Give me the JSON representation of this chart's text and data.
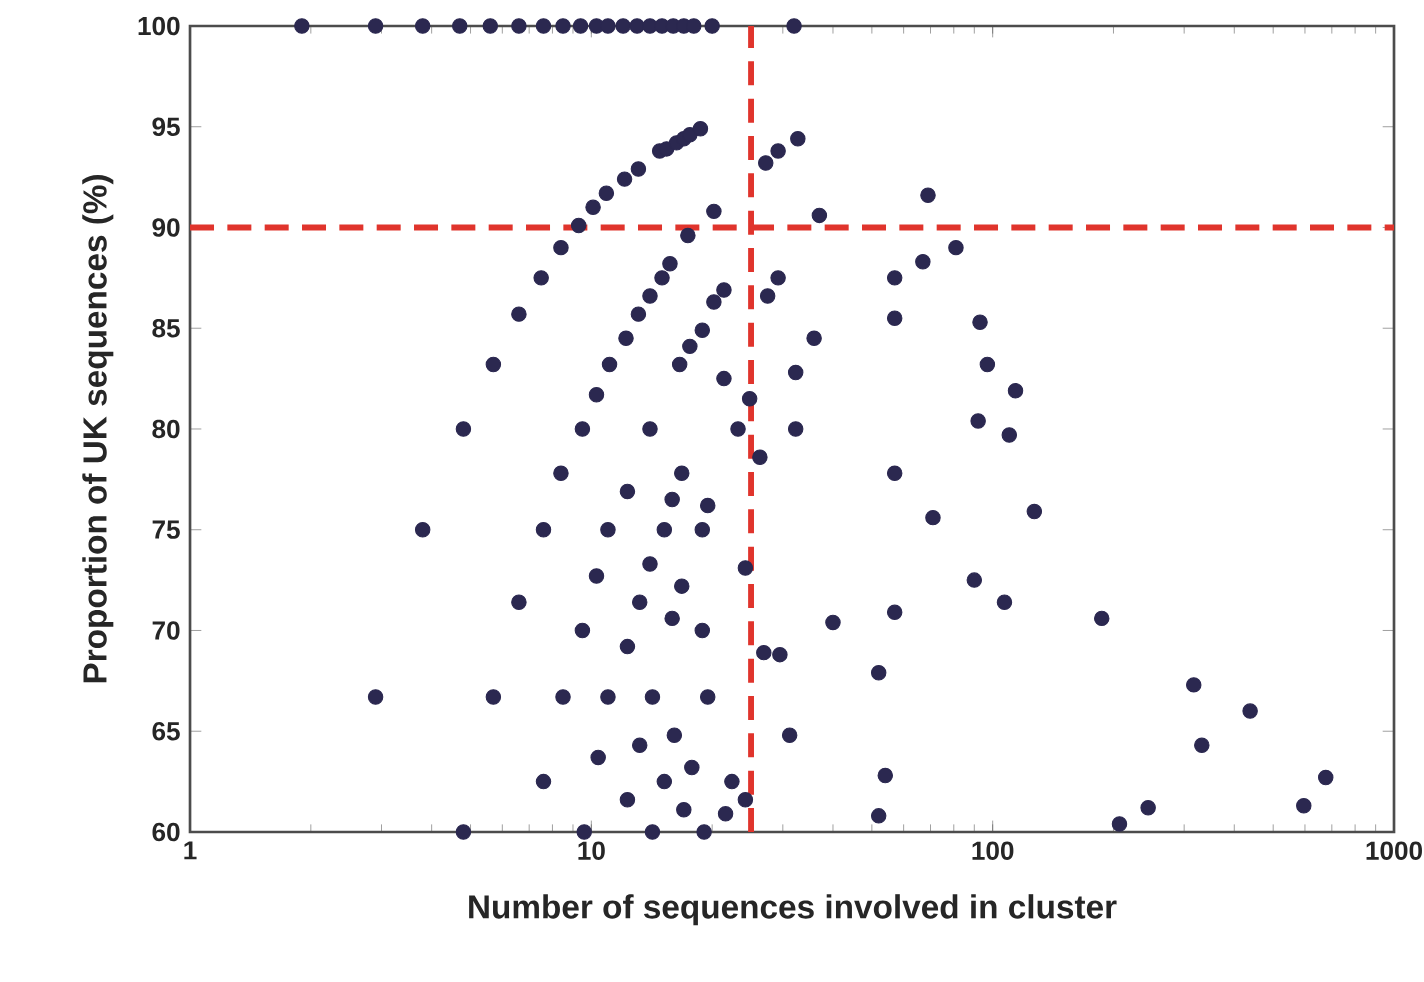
{
  "chart_data": {
    "type": "scatter",
    "xlabel": "Number of sequences involved in cluster",
    "ylabel": "Proportion of UK sequences (%)",
    "log": "x",
    "xlim": [
      1,
      1000
    ],
    "ylim": [
      60,
      100
    ],
    "xticks": [
      1,
      10,
      100,
      1000
    ],
    "yticks": [
      60,
      65,
      70,
      75,
      80,
      85,
      90,
      95,
      100
    ],
    "marker": "circle",
    "series": [
      {
        "color": "#2b2850",
        "x": [
          1.9,
          2.9,
          3.8,
          4.7,
          5.6,
          6.6,
          7.6,
          8.5,
          9.4,
          10.3,
          11,
          12,
          13,
          14,
          15,
          16,
          17,
          18,
          20,
          32,
          5.7,
          6.6,
          7.5,
          8.4,
          9.3,
          10.1,
          10.9,
          12.1,
          13.1,
          14.8,
          15.4,
          16.3,
          17.0,
          17.6,
          18.7,
          20.2,
          17.4,
          15.7,
          15.0,
          14.0,
          13.1,
          12.2,
          11.1,
          10.3,
          21.4,
          20.2,
          18.9,
          17.6,
          16.6,
          21.4,
          27.2,
          29.2,
          32.7,
          69,
          37,
          29.2,
          27.5,
          35.9,
          32.3,
          24.8,
          4.8,
          9.5,
          14,
          23.2,
          32.3,
          81,
          67,
          57,
          57,
          93,
          97,
          92,
          114,
          110,
          127,
          187,
          317,
          438,
          332,
          676,
          596,
          244,
          207,
          107,
          90,
          71,
          57,
          57,
          40,
          52,
          54,
          52,
          8.4,
          3.8,
          7.6,
          11,
          10.3,
          6.6,
          9.5,
          2.9,
          5.7,
          8.5,
          11,
          10.4,
          7.6,
          4.8,
          9.6,
          26.3,
          16.8,
          12.3,
          15.9,
          19.5,
          15.2,
          18.9,
          14,
          24.2,
          16.8,
          13.2,
          15.9,
          18.9,
          12.3,
          26.9,
          29.5,
          14.2,
          19.5,
          31.2,
          16.1,
          13.2,
          17.8,
          15.2,
          22.4,
          12.3,
          17,
          21.6,
          24.2,
          14.2,
          19.1
        ],
        "values": [
          100,
          100,
          100,
          100,
          100,
          100,
          100,
          100,
          100,
          100,
          100,
          100,
          100,
          100,
          100,
          100,
          100,
          100,
          100,
          100,
          83.2,
          85.7,
          87.5,
          89.0,
          90.1,
          91.0,
          91.7,
          92.4,
          92.9,
          93.8,
          93.9,
          94.2,
          94.4,
          94.6,
          94.9,
          90.8,
          89.6,
          88.2,
          87.5,
          86.6,
          85.7,
          84.5,
          83.2,
          81.7,
          86.9,
          86.3,
          84.9,
          84.1,
          83.2,
          82.5,
          93.2,
          93.8,
          94.4,
          91.6,
          90.6,
          87.5,
          86.6,
          84.5,
          82.8,
          81.5,
          80,
          80,
          80,
          80,
          80,
          89.0,
          88.3,
          87.5,
          85.5,
          85.3,
          83.2,
          80.4,
          81.9,
          79.7,
          75.9,
          70.6,
          67.3,
          66.0,
          64.3,
          62.7,
          61.3,
          61.2,
          60.4,
          71.4,
          72.5,
          75.6,
          77.8,
          70.9,
          70.4,
          67.9,
          62.8,
          60.8,
          77.8,
          75,
          75,
          75,
          72.7,
          71.4,
          70.0,
          66.7,
          66.7,
          66.7,
          66.7,
          63.7,
          62.5,
          60,
          60,
          78.6,
          77.8,
          76.9,
          76.5,
          76.2,
          75,
          75,
          73.3,
          73.1,
          72.2,
          71.4,
          70.6,
          70.0,
          69.2,
          68.9,
          68.8,
          66.7,
          66.7,
          64.8,
          64.8,
          64.3,
          63.2,
          62.5,
          62.5,
          61.6,
          61.1,
          60.9,
          61.6,
          60,
          60
        ]
      }
    ],
    "ref_lines": [
      {
        "axis": "x",
        "value": 25,
        "color": "#e0342c",
        "line_style": "dashed"
      },
      {
        "axis": "y",
        "value": 90,
        "color": "#e0342c",
        "line_style": "dashed"
      }
    ]
  }
}
